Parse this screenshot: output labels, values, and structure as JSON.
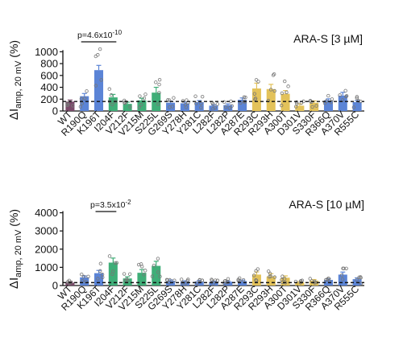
{
  "chart_data": [
    {
      "type": "bar",
      "title": "ARA-S [3 µM]",
      "annotation": {
        "prefix": "p=4.6x10",
        "exponent": "-10"
      },
      "ylabel": {
        "symbol": "ΔI",
        "sub": "amp, 20 mV",
        "suffix": " (%)"
      },
      "yticks": [
        0,
        200,
        400,
        600,
        800,
        1000
      ],
      "ylim": [
        0,
        1100
      ],
      "reference_line": 160,
      "categories": [
        "WT",
        "R190Q",
        "K196T",
        "I204F",
        "V212F",
        "V215M",
        "S225L",
        "G269S",
        "Y278H",
        "Y281C",
        "L282F",
        "L282P",
        "A287E",
        "R293C",
        "R293H",
        "A300T",
        "D301V",
        "S330F",
        "R366Q",
        "A370V",
        "R555C"
      ],
      "values": [
        160,
        250,
        690,
        230,
        120,
        180,
        310,
        140,
        130,
        150,
        90,
        100,
        190,
        380,
        370,
        290,
        90,
        140,
        180,
        260,
        150
      ],
      "errors": [
        25,
        45,
        80,
        50,
        30,
        35,
        90,
        25,
        20,
        25,
        15,
        20,
        30,
        90,
        80,
        55,
        30,
        30,
        25,
        55,
        25
      ]
    },
    {
      "type": "bar",
      "title": "ARA-S [10 µM]",
      "annotation": {
        "prefix": "p=3.5x10",
        "exponent": "-2"
      },
      "ylabel": {
        "symbol": "ΔI",
        "sub": "amp, 20 mV",
        "suffix": " (%)"
      },
      "yticks": [
        0,
        1000,
        2000,
        3000,
        4000
      ],
      "ylim": [
        0,
        4200
      ],
      "reference_line": 160,
      "categories": [
        "WT",
        "R190Q",
        "K196T",
        "I204F",
        "V212F",
        "V215M",
        "S225L",
        "G269S",
        "Y278H",
        "Y281C",
        "L282F",
        "L282P",
        "A287E",
        "R293C",
        "R293H",
        "A300T",
        "D301V",
        "S330F",
        "R366Q",
        "A370V",
        "R555C"
      ],
      "values": [
        160,
        450,
        680,
        1260,
        390,
        700,
        1080,
        260,
        220,
        230,
        200,
        210,
        250,
        600,
        500,
        430,
        180,
        270,
        310,
        600,
        350
      ],
      "errors": [
        40,
        80,
        150,
        250,
        90,
        180,
        250,
        50,
        40,
        50,
        40,
        40,
        50,
        150,
        150,
        100,
        40,
        60,
        60,
        140,
        70
      ]
    }
  ],
  "colors": {
    "WT": "#7a4b6a",
    "blue": "#5b84d6",
    "green": "#3fae78",
    "yellow": "#e3c25a",
    "axis": "#111111",
    "point": "#777777"
  },
  "groups": {
    "WT": "WT",
    "R190Q": "blue",
    "K196T": "blue",
    "I204F": "green",
    "V212F": "green",
    "V215M": "green",
    "S225L": "green",
    "G269S": "blue",
    "Y278H": "blue",
    "Y281C": "blue",
    "L282F": "blue",
    "L282P": "blue",
    "A287E": "blue",
    "R293C": "yellow",
    "R293H": "yellow",
    "A300T": "yellow",
    "D301V": "yellow",
    "S330F": "yellow",
    "R366Q": "blue",
    "A370V": "blue",
    "R555C": "blue"
  }
}
